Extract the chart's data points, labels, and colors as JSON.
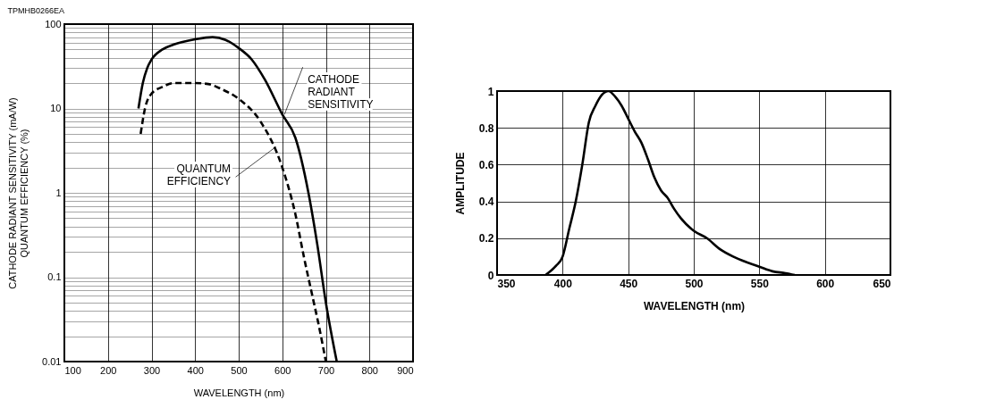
{
  "chart_data": [
    {
      "type": "line",
      "annotations": [
        "TPMHB0266EA",
        {
          "text": "CATHODE\nRADIANT\nSENSITIVITY",
          "x": 605,
          "y": 8.5
        },
        {
          "text": "QUANTUM\nEFFICIENCY",
          "x": 585,
          "y": 3.5
        }
      ],
      "xlabel": "WAVELENGTH (nm)",
      "ylabel": "CATHODE RADIANT SENSITIVITY (mA/W)\nQUANTUM EFFICIENCY (%)",
      "log": "y",
      "grid": true,
      "xlim": [
        100,
        900
      ],
      "xticks": [
        100,
        200,
        300,
        400,
        500,
        600,
        700,
        800,
        900
      ],
      "ylim": [
        0.01,
        100
      ],
      "yticks": [
        0.01,
        {
          "value": 0.02,
          "label": null
        },
        {
          "value": 0.03,
          "label": null
        },
        {
          "value": 0.04,
          "label": null
        },
        {
          "value": 0.05,
          "label": null
        },
        {
          "value": 0.06,
          "label": null
        },
        {
          "value": 0.07,
          "label": null
        },
        {
          "value": 0.08,
          "label": null
        },
        {
          "value": 0.09,
          "label": null
        },
        0.1,
        {
          "value": 0.2,
          "label": null
        },
        {
          "value": 0.3,
          "label": null
        },
        {
          "value": 0.4,
          "label": null
        },
        {
          "value": 0.5,
          "label": null
        },
        {
          "value": 0.6,
          "label": null
        },
        {
          "value": 0.7,
          "label": null
        },
        {
          "value": 0.8,
          "label": null
        },
        {
          "value": 0.9,
          "label": null
        },
        1,
        {
          "value": 2,
          "label": null
        },
        {
          "value": 3,
          "label": null
        },
        {
          "value": 4,
          "label": null
        },
        {
          "value": 5,
          "label": null
        },
        {
          "value": 6,
          "label": null
        },
        {
          "value": 7,
          "label": null
        },
        {
          "value": 8,
          "label": null
        },
        {
          "value": 9,
          "label": null
        },
        10,
        {
          "value": 20,
          "label": null
        },
        {
          "value": 30,
          "label": null
        },
        {
          "value": 40,
          "label": null
        },
        {
          "value": 50,
          "label": null
        },
        {
          "value": 60,
          "label": null
        },
        {
          "value": 70,
          "label": null
        },
        {
          "value": 80,
          "label": null
        },
        {
          "value": 90,
          "label": null
        },
        100
      ],
      "series": [
        {
          "color": "#000000",
          "line_style": "solid",
          "x": [
            270,
            280,
            290,
            300,
            325,
            350,
            400,
            440,
            470,
            500,
            530,
            560,
            600,
            630,
            660,
            680,
            700,
            725
          ],
          "values": [
            10,
            20,
            30,
            38,
            50,
            57,
            66,
            70,
            65,
            52,
            38,
            22,
            8.5,
            4.5,
            1,
            0.25,
            0.05,
            0.01
          ]
        },
        {
          "color": "#000000",
          "line_style": "dashed",
          "x": [
            275,
            285,
            300,
            325,
            350,
            400,
            430,
            460,
            500,
            550,
            600,
            630,
            650,
            670,
            685,
            700
          ],
          "values": [
            5,
            10,
            15,
            18,
            20,
            20,
            19.5,
            17,
            13,
            7,
            2,
            0.56,
            0.17,
            0.057,
            0.025,
            0.01
          ]
        }
      ]
    },
    {
      "type": "line",
      "xlabel": "WAVELENGTH (nm)",
      "ylabel": "AMPLITUDE",
      "grid": true,
      "xlim": [
        350,
        650
      ],
      "xticks": [
        350,
        400,
        450,
        500,
        550,
        600,
        650
      ],
      "ylim": [
        0,
        1
      ],
      "yticks": [
        0,
        0.2,
        0.4,
        0.6,
        0.8,
        1
      ],
      "series": [
        {
          "color": "#000000",
          "line_style": "solid",
          "x": [
            387,
            395,
            400,
            405,
            410,
            415,
            420,
            425,
            430,
            435,
            440,
            445,
            450,
            455,
            460,
            465,
            470,
            475,
            480,
            485,
            490,
            500,
            510,
            520,
            530,
            540,
            550,
            560,
            570,
            577
          ],
          "values": [
            0,
            0.05,
            0.1,
            0.25,
            0.4,
            0.6,
            0.83,
            0.92,
            0.98,
            1,
            0.97,
            0.92,
            0.85,
            0.78,
            0.72,
            0.63,
            0.53,
            0.46,
            0.42,
            0.36,
            0.31,
            0.24,
            0.2,
            0.14,
            0.1,
            0.07,
            0.045,
            0.02,
            0.01,
            0
          ]
        }
      ]
    }
  ]
}
